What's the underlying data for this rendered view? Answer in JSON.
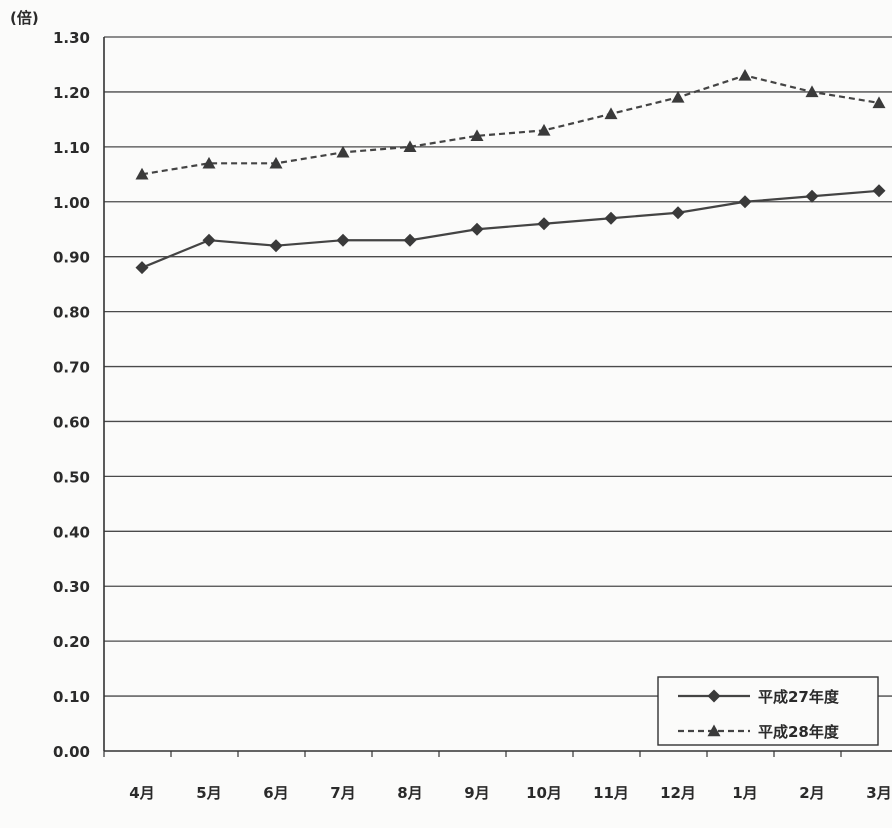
{
  "chart_data": {
    "type": "line",
    "unit_label": "(倍)",
    "categories": [
      "4月",
      "5月",
      "6月",
      "7月",
      "8月",
      "9月",
      "10月",
      "11月",
      "12月",
      "1月",
      "2月",
      "3月"
    ],
    "ylim": [
      0,
      1.3
    ],
    "yticks": [
      "0.00",
      "0.10",
      "0.20",
      "0.30",
      "0.40",
      "0.50",
      "0.60",
      "0.70",
      "0.80",
      "0.90",
      "1.00",
      "1.10",
      "1.20",
      "1.30"
    ],
    "grid": true,
    "legend_position": "bottom-right",
    "series": [
      {
        "name": "平成27年度",
        "line_style": "solid",
        "marker": "diamond",
        "color": "#444444",
        "values": [
          0.88,
          0.93,
          0.92,
          0.93,
          0.93,
          0.95,
          0.96,
          0.97,
          0.98,
          1.0,
          1.01,
          1.02
        ]
      },
      {
        "name": "平成28年度",
        "line_style": "dashed",
        "marker": "triangle",
        "color": "#444444",
        "values": [
          1.05,
          1.07,
          1.07,
          1.09,
          1.1,
          1.12,
          1.13,
          1.16,
          1.19,
          1.23,
          1.2,
          1.18
        ]
      }
    ]
  }
}
